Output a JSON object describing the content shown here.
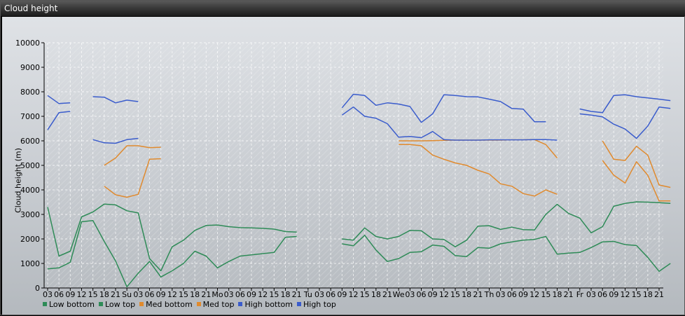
{
  "window": {
    "title": "Cloud height"
  },
  "chart_data": {
    "type": "line",
    "title": "Cloud height",
    "ylabel": "Cloud height (m)",
    "ylim": [
      0,
      10000
    ],
    "yticks": [
      0,
      1000,
      2000,
      3000,
      4000,
      5000,
      6000,
      7000,
      8000,
      9000,
      10000
    ],
    "grid": true,
    "legend_position": "bottom-left",
    "x_ticks": [
      "03",
      "06",
      "09",
      "12",
      "15",
      "18",
      "21",
      "Su",
      "03",
      "06",
      "09",
      "12",
      "15",
      "18",
      "21",
      "Mo",
      "03",
      "06",
      "09",
      "12",
      "15",
      "18",
      "21",
      "Tu",
      "03",
      "06",
      "09",
      "12",
      "15",
      "18",
      "21",
      "We",
      "03",
      "06",
      "09",
      "12",
      "15",
      "18",
      "21",
      "Th",
      "03",
      "06",
      "09",
      "12",
      "15",
      "18",
      "21",
      "Fr",
      "03",
      "06",
      "09",
      "12",
      "15",
      "18",
      "21"
    ],
    "series": [
      {
        "name": "Low bottom",
        "color": "#2e8b57",
        "values": [
          780,
          820,
          1050,
          2700,
          2750,
          1900,
          1100,
          50,
          600,
          1080,
          450,
          700,
          1000,
          1500,
          1300,
          820,
          1080,
          1300,
          1350,
          1400,
          1450,
          2070,
          2100,
          null,
          null,
          null,
          1800,
          1720,
          2150,
          1550,
          1080,
          1200,
          1450,
          1480,
          1750,
          1700,
          1320,
          1280,
          1650,
          1620,
          1800,
          1880,
          1950,
          1980,
          2100,
          1380,
          1420,
          1450,
          1650,
          1880,
          1900,
          1770,
          1730,
          1250,
          680,
          1000
        ],
        "segments_note": ""
      },
      {
        "name": "Low top",
        "color": "#2e8b57",
        "values": [
          3300,
          1300,
          1500,
          2900,
          3100,
          3420,
          3390,
          3150,
          3060,
          1200,
          700,
          1680,
          1950,
          2350,
          2550,
          2570,
          2500,
          2460,
          2450,
          2430,
          2400,
          2300,
          2280,
          null,
          null,
          null,
          2000,
          1950,
          2450,
          2100,
          2000,
          2100,
          2350,
          2330,
          2000,
          1980,
          1680,
          1950,
          2520,
          2540,
          2390,
          2480,
          2380,
          2370,
          3000,
          3410,
          3040,
          2850,
          2250,
          2500,
          3330,
          3450,
          3510,
          3500,
          3480,
          3450
        ]
      },
      {
        "name": "Med bottom",
        "color": "#e08a2e",
        "values": [
          null,
          null,
          null,
          null,
          null,
          4150,
          3800,
          3700,
          3820,
          5250,
          5270,
          null,
          null,
          null,
          null,
          null,
          null,
          null,
          null,
          null,
          null,
          null,
          null,
          null,
          null,
          null,
          null,
          null,
          null,
          null,
          null,
          5850,
          5850,
          5800,
          5420,
          5250,
          5100,
          5000,
          4800,
          4650,
          4250,
          4150,
          3850,
          3750,
          4000,
          3820,
          null,
          null,
          null,
          5200,
          4600,
          4280,
          5150,
          4600,
          3550,
          3550
        ]
      },
      {
        "name": "Med top",
        "color": "#e08a2e",
        "values": [
          null,
          null,
          null,
          null,
          null,
          5000,
          5300,
          5800,
          5800,
          5720,
          5740,
          null,
          null,
          null,
          null,
          null,
          null,
          null,
          null,
          null,
          null,
          null,
          null,
          null,
          null,
          null,
          null,
          null,
          null,
          null,
          null,
          6000,
          6000,
          6000,
          6010,
          6020,
          6030,
          6030,
          6030,
          6030,
          6030,
          6040,
          6040,
          6050,
          5850,
          5300,
          null,
          null,
          null,
          6000,
          5250,
          5200,
          5780,
          5420,
          4200,
          4100
        ]
      },
      {
        "name": "High bottom",
        "color": "#3a5ccc",
        "values": [
          6450,
          7150,
          7200,
          null,
          6050,
          5920,
          5900,
          6050,
          6100,
          null,
          null,
          null,
          null,
          null,
          null,
          null,
          null,
          null,
          null,
          null,
          null,
          null,
          null,
          null,
          null,
          null,
          7050,
          7380,
          7000,
          6920,
          6700,
          6150,
          6180,
          6130,
          6380,
          6050,
          6030,
          6030,
          6030,
          6040,
          6040,
          6040,
          6040,
          6050,
          6050,
          6030,
          null,
          7100,
          7050,
          6980,
          6680,
          6480,
          6100,
          6600,
          7380,
          7320
        ]
      },
      {
        "name": "High top",
        "color": "#3a5ccc",
        "values": [
          7850,
          7520,
          7550,
          null,
          7800,
          7780,
          7550,
          7660,
          7600,
          null,
          null,
          null,
          null,
          null,
          null,
          null,
          null,
          null,
          null,
          null,
          null,
          null,
          null,
          null,
          null,
          null,
          7350,
          7900,
          7850,
          7450,
          7550,
          7500,
          7400,
          6750,
          7100,
          7880,
          7850,
          7800,
          7790,
          7700,
          7600,
          7320,
          7290,
          6780,
          6780,
          null,
          null,
          7300,
          7200,
          7150,
          7850,
          7880,
          7800,
          7750,
          7700,
          7640
        ]
      }
    ]
  }
}
